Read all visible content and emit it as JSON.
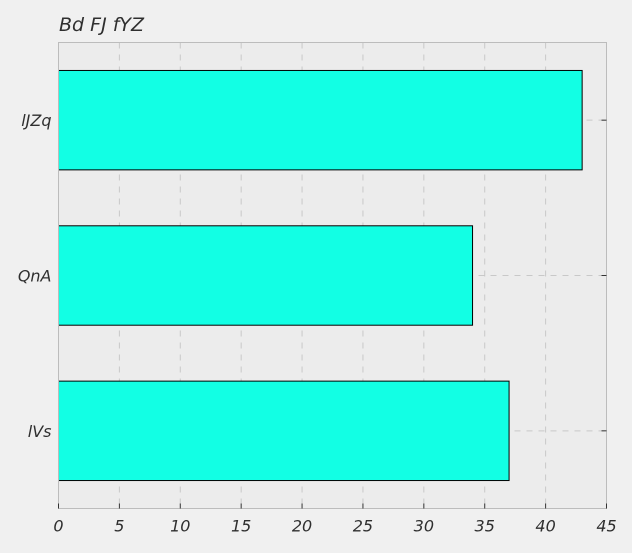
{
  "chart_data": {
    "type": "bar",
    "orientation": "horizontal",
    "title": "Bd FJ fYZ",
    "xlabel": "",
    "ylabel": "",
    "categories": [
      "lJZq",
      "QnA",
      "lVs"
    ],
    "values": [
      43,
      34,
      37
    ],
    "xlim": [
      0,
      45
    ],
    "xticks": [
      0,
      5,
      10,
      15,
      20,
      25,
      30,
      35,
      40,
      45
    ],
    "grid": true,
    "legend": "none",
    "bar_color": "#12ffe4",
    "bar_edge_color": "#000000",
    "plot_background": "#ececec",
    "grid_color": "#c8c8c8"
  }
}
